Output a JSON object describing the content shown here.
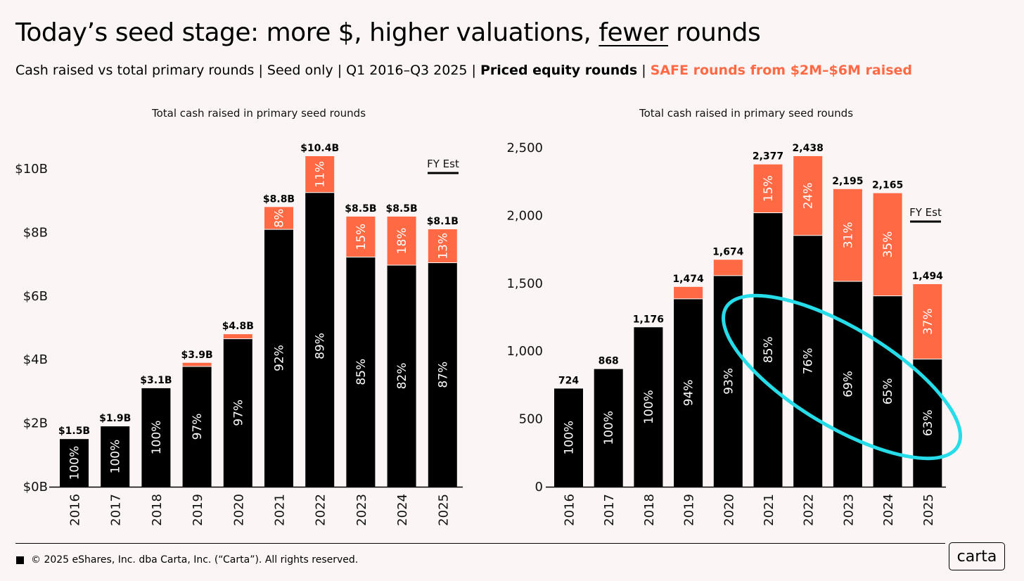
{
  "header": {
    "title_before": "Today’s seed stage: more $, higher valuations, ",
    "title_underlined": "fewer",
    "title_after": " rounds",
    "subtitle_plain": "Cash raised vs total primary rounds | Seed only | Q1 2016–Q3 2025 | ",
    "subtitle_priced": "Priced equity rounds",
    "subtitle_sep": " | ",
    "subtitle_safe": "SAFE rounds from $2M–$6M raised"
  },
  "colors": {
    "priced": "#000000",
    "safe": "#ff6a45",
    "highlight": "#25dce8",
    "background": "#fbf6f5"
  },
  "footer": {
    "copyright": "© 2025 eShares, Inc. dba Carta, Inc. (“Carta”). All rights reserved.",
    "logo": "carta"
  },
  "chart_data": [
    {
      "type": "bar",
      "stacked": true,
      "title": "Total cash raised in primary seed rounds",
      "categories": [
        "2016",
        "2017",
        "2018",
        "2019",
        "2020",
        "2021",
        "2022",
        "2023",
        "2024",
        "2025"
      ],
      "totals": [
        1.5,
        1.9,
        3.1,
        3.9,
        4.8,
        8.8,
        10.4,
        8.5,
        8.5,
        8.1
      ],
      "total_labels": [
        "$1.5B",
        "$1.9B",
        "$3.1B",
        "$3.9B",
        "$4.8B",
        "$8.8B",
        "$10.4B",
        "$8.5B",
        "$8.5B",
        "$8.1B"
      ],
      "series": [
        {
          "name": "Priced equity rounds",
          "share_pct": [
            100,
            100,
            100,
            97,
            97,
            92,
            89,
            85,
            82,
            87
          ]
        },
        {
          "name": "SAFE rounds from $2M–$6M raised",
          "share_pct": [
            0,
            0,
            0,
            3,
            3,
            8,
            11,
            15,
            18,
            13
          ]
        }
      ],
      "priced_labels": [
        "100%",
        "100%",
        "100%",
        "97%",
        "97%",
        "92%",
        "89%",
        "85%",
        "82%",
        "87%"
      ],
      "safe_labels": [
        "",
        "",
        "",
        "",
        "",
        "8%",
        "11%",
        "15%",
        "18%",
        "13%"
      ],
      "y_ticks": [
        0,
        2,
        4,
        6,
        8,
        10
      ],
      "y_tick_labels": [
        "$0B",
        "$2B",
        "$4B",
        "$6B",
        "$8B",
        "$10B"
      ],
      "ylim": [
        0,
        10.4
      ],
      "annotation": "FY Est"
    },
    {
      "type": "bar",
      "stacked": true,
      "title": "Total cash raised in primary seed rounds",
      "categories": [
        "2016",
        "2017",
        "2018",
        "2019",
        "2020",
        "2021",
        "2022",
        "2023",
        "2024",
        "2025"
      ],
      "totals": [
        724,
        868,
        1176,
        1474,
        1674,
        2377,
        2438,
        2195,
        2165,
        1494
      ],
      "total_labels": [
        "724",
        "868",
        "1,176",
        "1,474",
        "1,674",
        "2,377",
        "2,438",
        "2,195",
        "2,165",
        "1,494"
      ],
      "series": [
        {
          "name": "Priced equity rounds",
          "share_pct": [
            100,
            100,
            100,
            94,
            93,
            85,
            76,
            69,
            65,
            63
          ]
        },
        {
          "name": "SAFE rounds from $2M–$6M raised",
          "share_pct": [
            0,
            0,
            0,
            6,
            7,
            15,
            24,
            31,
            35,
            37
          ]
        }
      ],
      "priced_labels": [
        "100%",
        "100%",
        "100%",
        "94%",
        "93%",
        "85%",
        "76%",
        "69%",
        "65%",
        "63%"
      ],
      "safe_labels": [
        "",
        "",
        "",
        "",
        "",
        "15%",
        "24%",
        "31%",
        "35%",
        "37%"
      ],
      "y_ticks": [
        0,
        500,
        1000,
        1500,
        2000,
        2500
      ],
      "y_tick_labels": [
        "0",
        "500",
        "1,000",
        "1,500",
        "2,000",
        "2,500"
      ],
      "ylim": [
        0,
        2500
      ],
      "annotation": "FY Est",
      "highlight": "ellipse around 2021–2025 priced share"
    }
  ]
}
